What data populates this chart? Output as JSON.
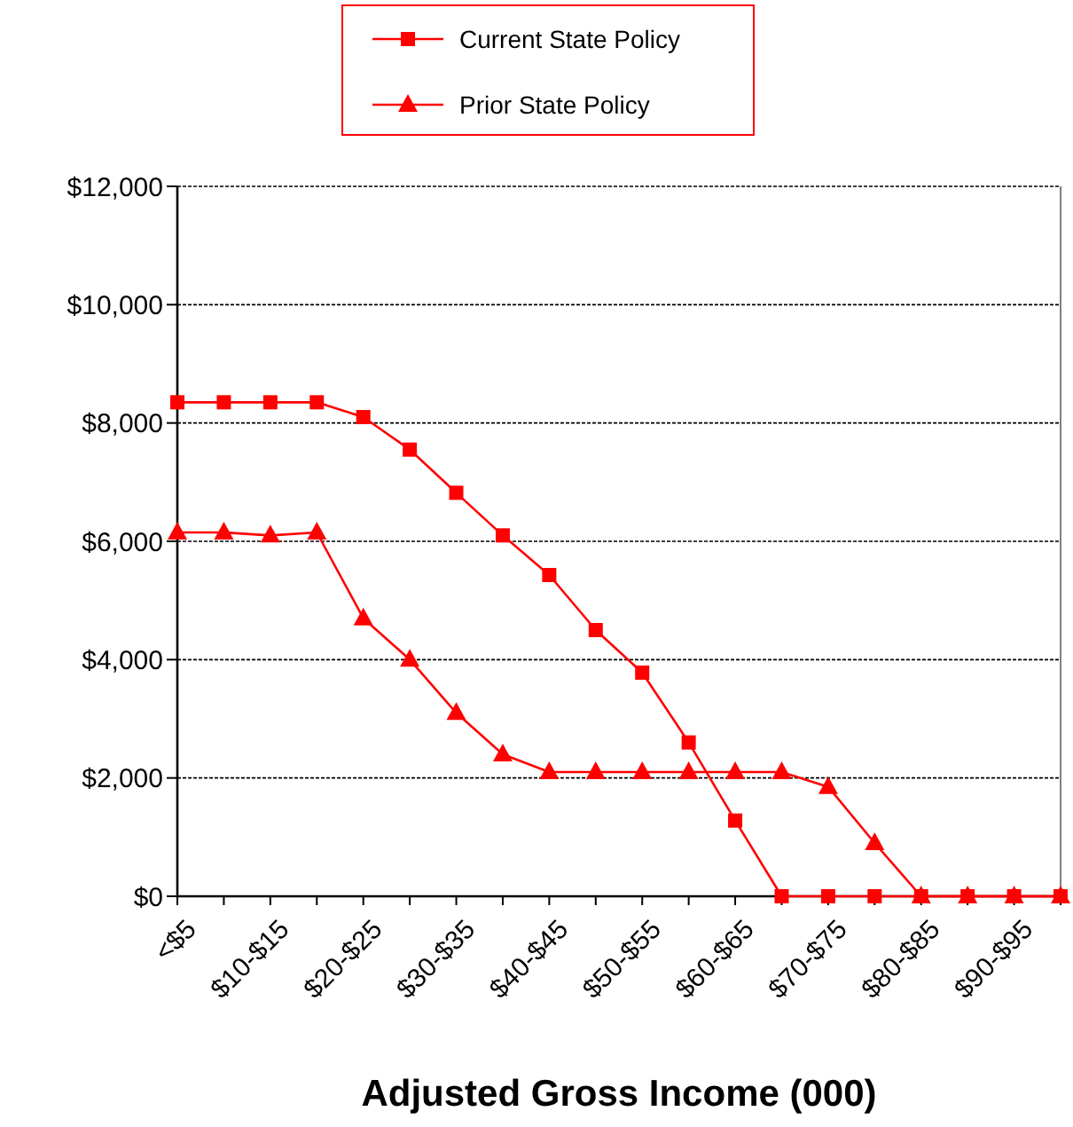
{
  "chart_data": {
    "type": "line",
    "xlabel": "Adjusted Gross Income (000)",
    "categories": [
      "<$5",
      null,
      "$10-$15",
      null,
      "$20-$25",
      null,
      "$30-$35",
      null,
      "$40-$45",
      null,
      "$50-$55",
      null,
      "$60-$65",
      null,
      "$70-$75",
      null,
      "$80-$85",
      null,
      "$90-$95",
      null
    ],
    "series": [
      {
        "name": "Current State Policy",
        "color": "#ff0000",
        "marker": "square",
        "values": [
          8350,
          8350,
          8350,
          8350,
          8100,
          7550,
          6820,
          6100,
          5430,
          4500,
          3780,
          2600,
          1280,
          0,
          0,
          0,
          0,
          0,
          0,
          0
        ]
      },
      {
        "name": "Prior State Policy",
        "color": "#ff0000",
        "marker": "triangle",
        "values": [
          6150,
          6150,
          6100,
          6150,
          4700,
          4000,
          3100,
          2400,
          2100,
          2100,
          2100,
          2100,
          2100,
          2100,
          1850,
          900,
          0,
          0,
          0,
          0
        ]
      }
    ],
    "ylim": [
      0,
      12000
    ],
    "yticks": [
      {
        "value": 0,
        "label": "$0"
      },
      {
        "value": 2000,
        "label": "$2,000"
      },
      {
        "value": 4000,
        "label": "$4,000"
      },
      {
        "value": 6000,
        "label": "$6,000"
      },
      {
        "value": 8000,
        "label": "$8,000"
      },
      {
        "value": 10000,
        "label": "$10,000"
      },
      {
        "value": 12000,
        "label": "$12,000"
      }
    ],
    "grid": "y",
    "legend": "top",
    "line_style": "solid"
  }
}
